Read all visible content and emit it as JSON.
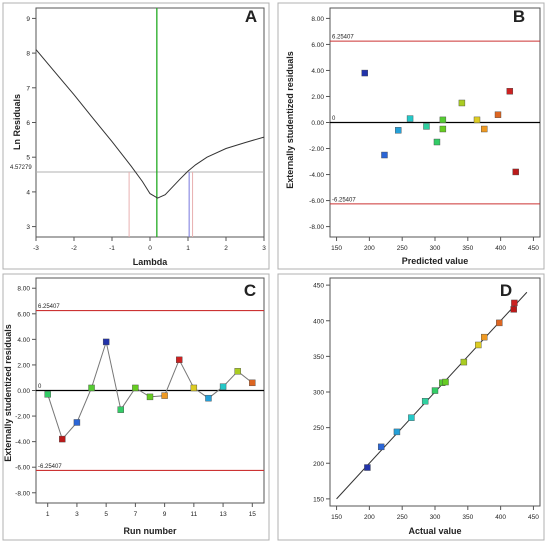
{
  "chart_data": [
    {
      "panel": "A",
      "type": "line",
      "xlabel": "Lambda",
      "ylabel": "Ln Residuals",
      "xlim": [
        -3,
        3
      ],
      "ylim": [
        2.7,
        9.3
      ],
      "xticks": [
        "-3",
        "-2",
        "-1",
        "0",
        "1",
        "2",
        "3"
      ],
      "yticks": [
        "3",
        "4",
        "5",
        "6",
        "7",
        "8",
        "9"
      ],
      "curve": {
        "x": [
          -3,
          -2.5,
          -2,
          -1.5,
          -1,
          -0.5,
          -0.2,
          0,
          0.2,
          0.4,
          0.6,
          0.8,
          1.0,
          1.2,
          1.5,
          2,
          2.5,
          3
        ],
        "y": [
          8.1,
          7.45,
          6.8,
          6.12,
          5.45,
          4.75,
          4.3,
          3.95,
          3.82,
          3.92,
          4.15,
          4.38,
          4.6,
          4.78,
          5.0,
          5.25,
          5.42,
          5.58
        ]
      },
      "ref_line": {
        "label": "4.57279",
        "value": 4.57279,
        "color": "#b0b0b0"
      },
      "markers": [
        {
          "x": 0.18,
          "color": "#22aa22"
        },
        {
          "x": -0.55,
          "color": "#e8b0b0"
        },
        {
          "x": 1.12,
          "color": "#e8b0b0"
        },
        {
          "x": 1.03,
          "color": "#7777dd"
        }
      ],
      "grid": false
    },
    {
      "panel": "B",
      "type": "scatter",
      "xlabel": "Predicted value",
      "ylabel": "Externally studentized residuals",
      "xlim": [
        140,
        460
      ],
      "ylim": [
        -8.8,
        8.8
      ],
      "xticks": [
        "150",
        "200",
        "250",
        "300",
        "350",
        "400",
        "450"
      ],
      "yticks": [
        "-8.00",
        "-6.00",
        "-4.00",
        "-2.00",
        "0.00",
        "2.00",
        "4.00",
        "6.00",
        "8.00"
      ],
      "hlines": [
        {
          "label": "6.25407",
          "value": 6.25407,
          "color": "#cc3333"
        },
        {
          "label": "0",
          "value": 0,
          "color": "#000000"
        },
        {
          "label": "-6.25407",
          "value": -6.25407,
          "color": "#cc3333"
        }
      ],
      "points": [
        {
          "x": 193,
          "y": 3.8,
          "color": "#2233aa"
        },
        {
          "x": 223,
          "y": -2.5,
          "color": "#2b66d6"
        },
        {
          "x": 244,
          "y": -0.6,
          "color": "#25a0d8"
        },
        {
          "x": 262,
          "y": 0.3,
          "color": "#25c8c8"
        },
        {
          "x": 287,
          "y": -0.3,
          "color": "#30d0a0"
        },
        {
          "x": 303,
          "y": -1.5,
          "color": "#33cc66"
        },
        {
          "x": 312,
          "y": 0.2,
          "color": "#55cc33"
        },
        {
          "x": 312,
          "y": -0.5,
          "color": "#66cc22"
        },
        {
          "x": 341,
          "y": 1.5,
          "color": "#aacc22"
        },
        {
          "x": 364,
          "y": 0.2,
          "color": "#ddcc22"
        },
        {
          "x": 375,
          "y": -0.5,
          "color": "#ee9922"
        },
        {
          "x": 396,
          "y": 0.6,
          "color": "#dd6622"
        },
        {
          "x": 414,
          "y": 2.4,
          "color": "#cc2222"
        },
        {
          "x": 423,
          "y": -3.8,
          "color": "#bb1a1a"
        }
      ],
      "grid": false
    },
    {
      "panel": "C",
      "type": "line",
      "xlabel": "Run number",
      "ylabel": "Externally studentized residuals",
      "xlim": [
        0.2,
        15.8
      ],
      "ylim": [
        -8.8,
        8.8
      ],
      "xticks": [
        "1",
        "3",
        "5",
        "7",
        "9",
        "11",
        "13",
        "15"
      ],
      "yticks": [
        "-8.00",
        "-6.00",
        "-4.00",
        "-2.00",
        "0.00",
        "2.00",
        "4.00",
        "6.00",
        "8.00"
      ],
      "hlines": [
        {
          "label": "6.25407",
          "value": 6.25407,
          "color": "#cc3333"
        },
        {
          "label": "0",
          "value": 0,
          "color": "#000000"
        },
        {
          "label": "-6.25407",
          "value": -6.25407,
          "color": "#cc3333"
        }
      ],
      "points": [
        {
          "x": 1,
          "y": -0.3,
          "color": "#33cc66"
        },
        {
          "x": 2,
          "y": -3.8,
          "color": "#bb1a1a"
        },
        {
          "x": 3,
          "y": -2.5,
          "color": "#2b66d6"
        },
        {
          "x": 4,
          "y": 0.2,
          "color": "#55cc33"
        },
        {
          "x": 5,
          "y": 3.8,
          "color": "#2233aa"
        },
        {
          "x": 6,
          "y": -1.5,
          "color": "#33cc66"
        },
        {
          "x": 7,
          "y": 0.2,
          "color": "#66cc22"
        },
        {
          "x": 8,
          "y": -0.5,
          "color": "#66cc22"
        },
        {
          "x": 9,
          "y": -0.4,
          "color": "#ee9922"
        },
        {
          "x": 10,
          "y": 2.4,
          "color": "#cc2222"
        },
        {
          "x": 11,
          "y": 0.2,
          "color": "#ddcc22"
        },
        {
          "x": 12,
          "y": -0.6,
          "color": "#25a0d8"
        },
        {
          "x": 13,
          "y": 0.3,
          "color": "#25c8c8"
        },
        {
          "x": 14,
          "y": 1.5,
          "color": "#aacc22"
        },
        {
          "x": 15,
          "y": 0.6,
          "color": "#dd6622"
        }
      ],
      "grid": false
    },
    {
      "panel": "D",
      "type": "scatter",
      "xlabel": "Actual value",
      "ylabel": "",
      "xlim": [
        140,
        460
      ],
      "ylim": [
        140,
        460
      ],
      "xticks": [
        "150",
        "200",
        "250",
        "300",
        "350",
        "400",
        "450"
      ],
      "yticks": [
        "150",
        "200",
        "250",
        "300",
        "350",
        "400",
        "450"
      ],
      "fit_line": {
        "x": [
          150,
          440
        ],
        "y": [
          150,
          440
        ],
        "color": "#333333"
      },
      "points": [
        {
          "x": 197,
          "y": 194,
          "color": "#2233aa"
        },
        {
          "x": 218,
          "y": 223,
          "color": "#2b66d6"
        },
        {
          "x": 242,
          "y": 244,
          "color": "#25a0d8"
        },
        {
          "x": 264,
          "y": 264,
          "color": "#25c8c8"
        },
        {
          "x": 285,
          "y": 287,
          "color": "#30d0a0"
        },
        {
          "x": 300,
          "y": 302,
          "color": "#33cc66"
        },
        {
          "x": 311,
          "y": 313,
          "color": "#55cc33"
        },
        {
          "x": 316,
          "y": 314,
          "color": "#66cc22"
        },
        {
          "x": 344,
          "y": 342,
          "color": "#aacc22"
        },
        {
          "x": 366,
          "y": 366,
          "color": "#ddcc22"
        },
        {
          "x": 375,
          "y": 377,
          "color": "#ee9922"
        },
        {
          "x": 398,
          "y": 397,
          "color": "#dd6622"
        },
        {
          "x": 420,
          "y": 416,
          "color": "#bb1a1a"
        },
        {
          "x": 421,
          "y": 425,
          "color": "#cc2222"
        }
      ],
      "grid": false
    }
  ]
}
